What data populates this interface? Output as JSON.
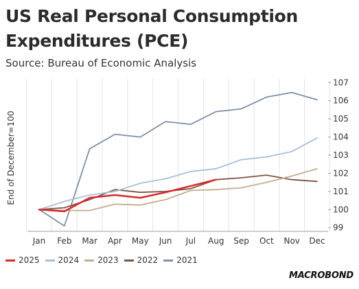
{
  "title": "US Real Personal Consumption Expenditures (PCE)",
  "subtitle": "Source: Bureau of Economic Analysis",
  "logo_text": "MACROBOND",
  "chart_data": {
    "type": "line",
    "title": "US Real Personal Consumption Expenditures (PCE)",
    "ylabel": "End of December=100",
    "categories": [
      "Jan",
      "Feb",
      "Mar",
      "Apr",
      "May",
      "Jun",
      "Jul",
      "Aug",
      "Sep",
      "Oct",
      "Nov",
      "Dec"
    ],
    "ylim": [
      98.8,
      107.2
    ],
    "yticks": [
      99,
      100,
      101,
      102,
      103,
      104,
      105,
      106,
      107
    ],
    "y_axis_side": "right",
    "grid": "vertical",
    "legend_position": "bottom-left",
    "series": [
      {
        "name": "2025",
        "color": "#d9262b",
        "width": 2.5,
        "values": [
          100.0,
          99.9,
          100.65,
          100.8,
          100.65,
          100.95,
          101.3,
          101.65,
          null,
          null,
          null,
          null
        ]
      },
      {
        "name": "2024",
        "color": "#a7bfd8",
        "width": 1.8,
        "values": [
          100.0,
          100.45,
          100.8,
          101.0,
          101.45,
          101.7,
          102.1,
          102.25,
          102.75,
          102.9,
          103.2,
          103.95
        ]
      },
      {
        "name": "2023",
        "color": "#c2ad8a",
        "width": 1.8,
        "values": [
          100.0,
          99.95,
          99.95,
          100.3,
          100.25,
          100.55,
          101.05,
          101.1,
          101.2,
          101.5,
          101.85,
          102.25
        ]
      },
      {
        "name": "2022",
        "color": "#7b5346",
        "width": 1.8,
        "values": [
          100.0,
          100.1,
          100.55,
          101.1,
          100.95,
          101.0,
          101.15,
          101.65,
          101.75,
          101.9,
          101.65,
          101.55
        ]
      },
      {
        "name": "2021",
        "color": "#7f8ea6",
        "width": 1.8,
        "values": [
          100.0,
          99.1,
          103.35,
          104.15,
          104.0,
          104.85,
          104.7,
          105.4,
          105.55,
          106.2,
          106.45,
          106.05
        ]
      }
    ]
  }
}
